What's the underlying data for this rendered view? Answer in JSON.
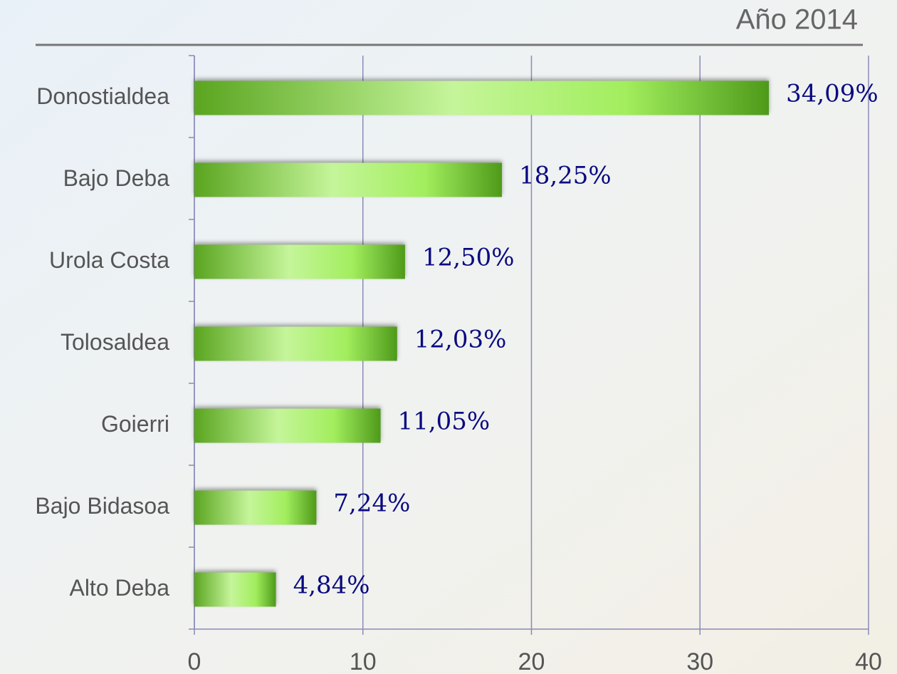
{
  "chart_data": {
    "type": "bar",
    "orientation": "horizontal",
    "title": "Año 2014",
    "categories": [
      "Donostialdea",
      "Bajo Deba",
      "Urola Costa",
      "Tolosaldea",
      "Goierri",
      "Bajo Bidasoa",
      "Alto Deba"
    ],
    "values": [
      34.09,
      18.25,
      12.5,
      12.03,
      11.05,
      7.24,
      4.84
    ],
    "value_labels": [
      "34,09%",
      "18,25%",
      "12,50%",
      "12,03%",
      "11,05%",
      "7,24%",
      "4,84%"
    ],
    "color": "#7ed43a",
    "xlim": [
      0,
      40
    ],
    "xticks": [
      0,
      10,
      20,
      30,
      40
    ],
    "grid": true
  }
}
